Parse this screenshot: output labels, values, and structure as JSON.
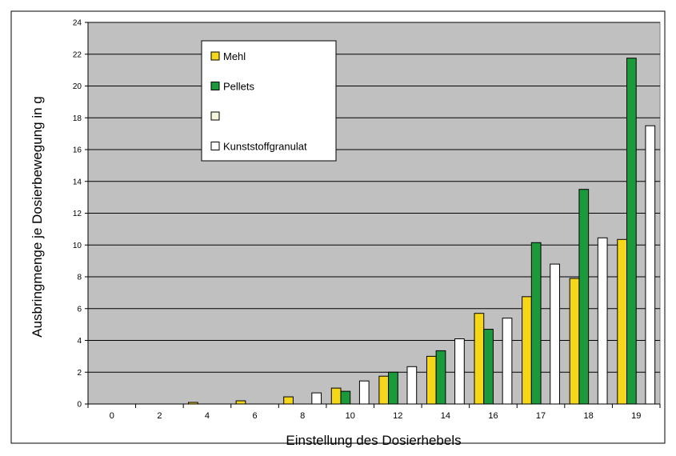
{
  "chart_data": {
    "type": "bar",
    "xlabel": "Einstellung des Dosierhebels",
    "ylabel": "Ausbringmenge je Dosierbewegung in g",
    "ylim": [
      0,
      24
    ],
    "yticks": [
      0,
      2,
      4,
      6,
      8,
      10,
      12,
      14,
      16,
      18,
      20,
      22,
      24
    ],
    "grid": true,
    "legend_position": "top-left-inside",
    "plot_background": "#c0c0c0",
    "categories": [
      "0",
      "2",
      "4",
      "6",
      "8",
      "10",
      "12",
      "14",
      "16",
      "17",
      "18",
      "19"
    ],
    "series": [
      {
        "name": "Mehl",
        "color": "#f5d619",
        "values": [
          0,
          0,
          0.1,
          0.2,
          0.45,
          1.0,
          1.75,
          3.0,
          5.7,
          6.75,
          7.9,
          10.35
        ]
      },
      {
        "name": "Pellets",
        "color": "#1a9a3a",
        "values": [
          0,
          0,
          0,
          0,
          0,
          0.8,
          2.0,
          3.35,
          4.7,
          10.15,
          13.5,
          21.75
        ]
      },
      {
        "name": "",
        "color": "#f5f5dc",
        "values": [
          0,
          0,
          0,
          0,
          0,
          0,
          0,
          0,
          0,
          0,
          0,
          0
        ]
      },
      {
        "name": "Kunststoffgranulat",
        "color": "#ffffff",
        "values": [
          0,
          0,
          0,
          0,
          0.7,
          1.45,
          2.35,
          4.1,
          5.4,
          8.8,
          10.45,
          17.5
        ]
      }
    ]
  }
}
